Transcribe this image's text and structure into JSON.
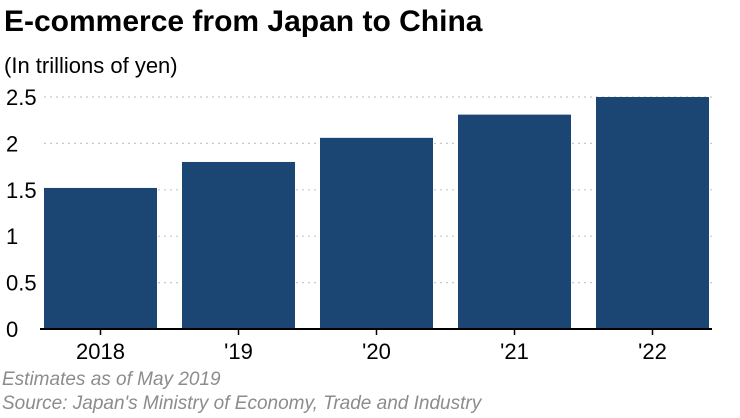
{
  "chart_data": {
    "type": "bar",
    "title": "E-commerce from Japan to China",
    "subtitle": "(In trillions of yen)",
    "categories": [
      "2018",
      "'19",
      "'20",
      "'21",
      "'22"
    ],
    "values": [
      1.52,
      1.8,
      2.06,
      2.31,
      2.5
    ],
    "ylim": [
      0,
      2.5
    ],
    "yticks": [
      0,
      0.5,
      1,
      1.5,
      2,
      2.5
    ],
    "ytick_labels": [
      "0",
      "0.5",
      "1",
      "1.5",
      "2",
      "2.5"
    ],
    "xlabel": "",
    "ylabel": "",
    "grid": true,
    "bar_color": "#1b4674",
    "grid_color": "#c8c8c8"
  },
  "notes": {
    "estimate": "Estimates as of May 2019",
    "source": "Source: Japan's Ministry of Economy, Trade and Industry"
  }
}
